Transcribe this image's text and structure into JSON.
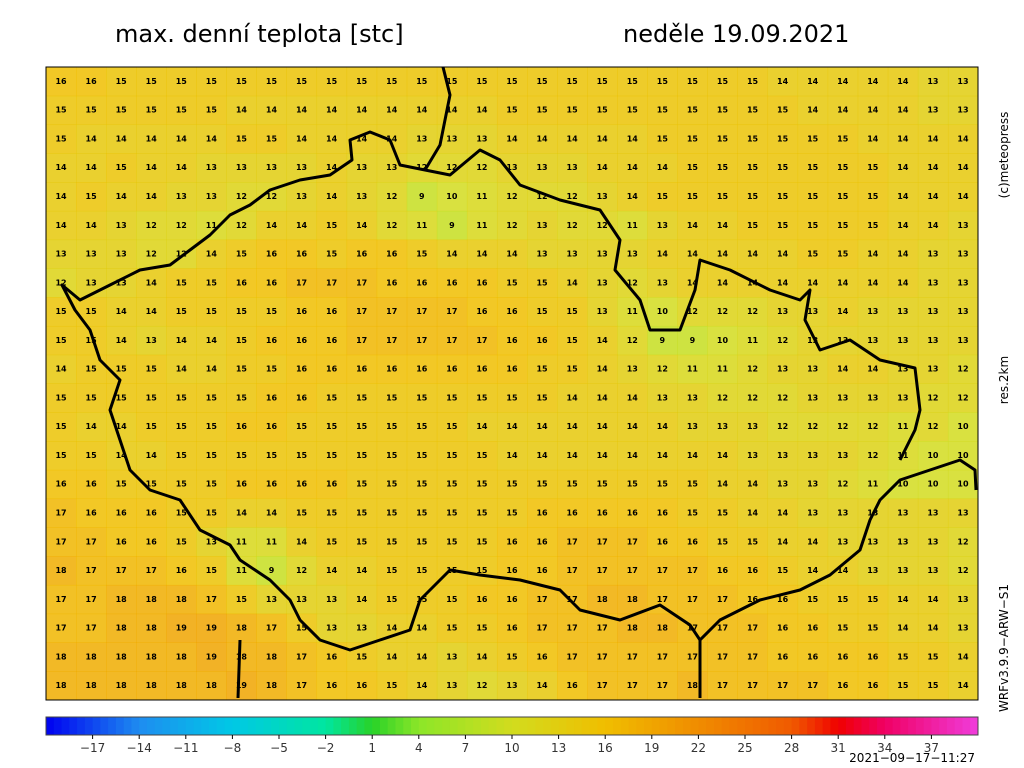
{
  "title": "max. denní teplota [stc]",
  "date": "neděle 19.09.2021",
  "copyright": "(c)meteopress",
  "resolution": "res.2km",
  "model": "WRFv3.9.9−ARW−S1",
  "timestamp": "2021−09−17−11:27",
  "grid": [
    [
      16,
      16,
      15,
      15,
      15,
      15,
      15,
      15,
      15,
      15,
      15,
      15,
      15,
      15,
      15,
      15,
      15,
      15,
      15,
      15,
      15,
      15,
      15,
      15,
      14,
      14,
      14,
      14,
      14,
      13,
      13
    ],
    [
      15,
      15,
      15,
      15,
      15,
      15,
      14,
      14,
      14,
      14,
      14,
      14,
      14,
      14,
      14,
      15,
      15,
      15,
      15,
      15,
      15,
      15,
      15,
      15,
      15,
      14,
      14,
      14,
      14,
      13,
      13
    ],
    [
      15,
      14,
      14,
      14,
      14,
      14,
      15,
      15,
      14,
      14,
      14,
      14,
      13,
      13,
      13,
      14,
      14,
      14,
      14,
      14,
      15,
      15,
      15,
      15,
      15,
      15,
      15,
      14,
      14,
      14,
      14
    ],
    [
      14,
      14,
      15,
      14,
      14,
      13,
      13,
      13,
      13,
      14,
      13,
      13,
      12,
      12,
      12,
      13,
      13,
      13,
      14,
      14,
      14,
      15,
      15,
      15,
      15,
      15,
      15,
      15,
      14,
      14,
      14
    ],
    [
      14,
      15,
      14,
      14,
      13,
      13,
      12,
      12,
      13,
      14,
      13,
      12,
      9,
      10,
      11,
      12,
      12,
      12,
      13,
      14,
      15,
      15,
      15,
      15,
      15,
      15,
      15,
      15,
      14,
      14,
      14
    ],
    [
      14,
      14,
      13,
      12,
      12,
      11,
      12,
      14,
      14,
      15,
      14,
      12,
      11,
      9,
      11,
      12,
      13,
      12,
      12,
      11,
      13,
      14,
      14,
      15,
      15,
      15,
      15,
      15,
      14,
      14,
      13
    ],
    [
      13,
      13,
      13,
      12,
      12,
      14,
      15,
      16,
      16,
      15,
      16,
      16,
      15,
      14,
      14,
      14,
      13,
      13,
      13,
      13,
      14,
      14,
      14,
      14,
      14,
      15,
      15,
      14,
      14,
      13,
      13
    ],
    [
      12,
      13,
      13,
      14,
      15,
      15,
      16,
      16,
      17,
      17,
      17,
      16,
      16,
      16,
      16,
      15,
      15,
      14,
      13,
      12,
      13,
      14,
      14,
      14,
      14,
      14,
      14,
      14,
      14,
      13,
      13
    ],
    [
      15,
      15,
      14,
      14,
      15,
      15,
      15,
      15,
      16,
      16,
      17,
      17,
      17,
      17,
      16,
      16,
      15,
      15,
      13,
      11,
      10,
      12,
      12,
      12,
      13,
      13,
      14,
      13,
      13,
      13,
      13
    ],
    [
      15,
      15,
      14,
      13,
      14,
      14,
      15,
      16,
      16,
      16,
      17,
      17,
      17,
      17,
      17,
      16,
      16,
      15,
      14,
      12,
      9,
      9,
      10,
      11,
      12,
      13,
      13,
      13,
      13,
      13,
      13
    ],
    [
      14,
      15,
      15,
      15,
      14,
      14,
      15,
      15,
      16,
      16,
      16,
      16,
      16,
      16,
      16,
      16,
      15,
      15,
      14,
      13,
      12,
      11,
      11,
      12,
      13,
      13,
      14,
      14,
      13,
      13,
      12
    ],
    [
      15,
      15,
      15,
      15,
      15,
      15,
      15,
      16,
      16,
      15,
      15,
      15,
      15,
      15,
      15,
      15,
      15,
      14,
      14,
      14,
      13,
      13,
      12,
      12,
      12,
      13,
      13,
      13,
      13,
      12,
      12
    ],
    [
      15,
      14,
      14,
      15,
      15,
      15,
      16,
      16,
      15,
      15,
      15,
      15,
      15,
      15,
      14,
      14,
      14,
      14,
      14,
      14,
      14,
      13,
      13,
      13,
      12,
      12,
      12,
      12,
      11,
      12,
      10
    ],
    [
      15,
      15,
      14,
      14,
      15,
      15,
      15,
      15,
      15,
      15,
      15,
      15,
      15,
      15,
      15,
      14,
      14,
      14,
      14,
      14,
      14,
      14,
      14,
      13,
      13,
      13,
      13,
      12,
      11,
      10,
      10
    ],
    [
      16,
      16,
      15,
      15,
      15,
      15,
      16,
      16,
      16,
      16,
      15,
      15,
      15,
      15,
      15,
      15,
      15,
      15,
      15,
      15,
      15,
      15,
      14,
      14,
      13,
      13,
      12,
      11,
      10,
      10,
      10
    ],
    [
      17,
      16,
      16,
      16,
      15,
      15,
      14,
      14,
      15,
      15,
      15,
      15,
      15,
      15,
      15,
      15,
      16,
      16,
      16,
      16,
      16,
      15,
      15,
      14,
      14,
      13,
      13,
      13,
      13,
      13,
      13
    ],
    [
      17,
      17,
      16,
      16,
      15,
      13,
      11,
      11,
      14,
      15,
      15,
      15,
      15,
      15,
      15,
      16,
      16,
      17,
      17,
      17,
      16,
      16,
      15,
      15,
      14,
      14,
      13,
      13,
      13,
      13,
      12
    ],
    [
      18,
      17,
      17,
      17,
      16,
      15,
      11,
      9,
      12,
      14,
      14,
      15,
      15,
      15,
      15,
      16,
      16,
      17,
      17,
      17,
      17,
      17,
      16,
      16,
      15,
      14,
      14,
      13,
      13,
      13,
      12
    ],
    [
      17,
      17,
      18,
      18,
      18,
      17,
      15,
      13,
      13,
      13,
      14,
      15,
      15,
      15,
      16,
      16,
      17,
      17,
      18,
      18,
      17,
      17,
      17,
      16,
      16,
      15,
      15,
      15,
      14,
      14,
      13
    ],
    [
      17,
      17,
      18,
      18,
      19,
      19,
      18,
      17,
      15,
      13,
      13,
      14,
      14,
      15,
      15,
      16,
      17,
      17,
      17,
      18,
      18,
      17,
      17,
      17,
      16,
      16,
      15,
      15,
      14,
      14,
      13
    ],
    [
      18,
      18,
      18,
      18,
      18,
      19,
      18,
      18,
      17,
      16,
      15,
      14,
      14,
      13,
      14,
      15,
      16,
      17,
      17,
      17,
      17,
      17,
      17,
      17,
      16,
      16,
      16,
      16,
      15,
      15,
      14
    ],
    [
      18,
      18,
      18,
      18,
      18,
      18,
      19,
      18,
      17,
      16,
      16,
      15,
      14,
      13,
      12,
      13,
      14,
      16,
      17,
      17,
      17,
      18,
      17,
      17,
      17,
      17,
      16,
      16,
      15,
      15,
      14
    ]
  ],
  "colorbar": {
    "lim": [
      -20,
      40
    ],
    "ticks": [
      {
        "value": -17,
        "label": "−17"
      },
      {
        "value": -14,
        "label": "−14"
      },
      {
        "value": -11,
        "label": "−11"
      },
      {
        "value": -8,
        "label": "−8"
      },
      {
        "value": -5,
        "label": "−5"
      },
      {
        "value": -2,
        "label": "−2"
      },
      1,
      4,
      7,
      10,
      13,
      16,
      19,
      22,
      25,
      28,
      31,
      34,
      37
    ],
    "stops": [
      [
        -20,
        "#0000f0"
      ],
      [
        -14,
        "#1e8cf0"
      ],
      [
        -8,
        "#00c8e6"
      ],
      [
        -2,
        "#00e6a0"
      ],
      [
        1,
        "#28d228"
      ],
      [
        4,
        "#8ce628"
      ],
      [
        10,
        "#d2dc1e"
      ],
      [
        16,
        "#f0be00"
      ],
      [
        22,
        "#f08c00"
      ],
      [
        28,
        "#f05a00"
      ],
      [
        31,
        "#f00000"
      ],
      [
        34,
        "#f00064"
      ],
      [
        40,
        "#f03cdc"
      ]
    ]
  }
}
